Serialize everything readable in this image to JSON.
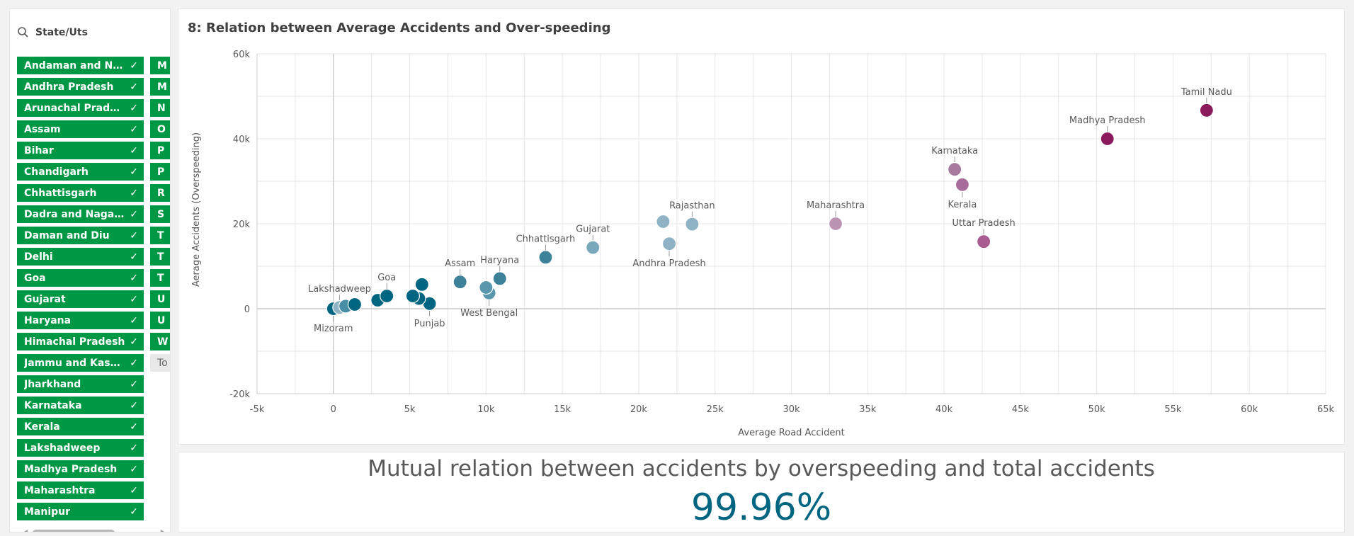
{
  "filter": {
    "search_label": "State/Uts",
    "items_col1": [
      "Andaman and Nicobar Islands",
      "Andhra Pradesh",
      "Arunachal Pradesh",
      "Assam",
      "Bihar",
      "Chandigarh",
      "Chhattisgarh",
      "Dadra and Nagar Haveli",
      "Daman and Diu",
      "Delhi",
      "Goa",
      "Gujarat",
      "Haryana",
      "Himachal Pradesh",
      "Jammu and Kashmir",
      "Jharkhand",
      "Karnataka",
      "Kerala",
      "Lakshadweep",
      "Madhya Pradesh",
      "Maharashtra",
      "Manipur"
    ],
    "items_col2": [
      "M",
      "M",
      "N",
      "O",
      "P",
      "P",
      "R",
      "S",
      "T",
      "T",
      "T",
      "U",
      "U",
      "W",
      "To"
    ],
    "check_glyph": "✓"
  },
  "chart": {
    "title": "8: Relation between Average Accidents and Over-speeding",
    "colors": {
      "low": "#006580",
      "mid": "#8fb8c8",
      "high": "#bb93b3",
      "top": "#8a1a5a",
      "grid": "#e6e6e6",
      "axis": "#cccccc"
    }
  },
  "kpi": {
    "label": "Mutual relation between accidents by overspeeding and total accidents",
    "value": "99.96%"
  },
  "chart_data": {
    "type": "scatter",
    "xlabel": "Average Road Accident",
    "ylabel": "Aerage Accidents (Overspeeding)",
    "xlim": [
      -5000,
      65000
    ],
    "ylim": [
      -20000,
      60000
    ],
    "x_ticks": [
      -5000,
      0,
      5000,
      10000,
      15000,
      20000,
      25000,
      30000,
      35000,
      40000,
      45000,
      50000,
      55000,
      60000,
      65000
    ],
    "x_tick_labels": [
      "-5k",
      "0",
      "5k",
      "10k",
      "15k",
      "20k",
      "25k",
      "30k",
      "35k",
      "40k",
      "45k",
      "50k",
      "55k",
      "60k",
      "65k"
    ],
    "y_ticks": [
      -20000,
      0,
      20000,
      40000,
      60000
    ],
    "y_tick_labels": [
      "-20k",
      "0",
      "20k",
      "40k",
      "60k"
    ],
    "grid": true,
    "points": [
      {
        "x": 57200,
        "y": 46700,
        "label": "Tamil Nadu",
        "lpos": "above",
        "color": "#8a1a5a"
      },
      {
        "x": 50700,
        "y": 40000,
        "label": "Madhya Pradesh",
        "lpos": "above",
        "color": "#8a1a5a"
      },
      {
        "x": 40700,
        "y": 32800,
        "label": "Karnataka",
        "lpos": "above",
        "color": "#a87aa0"
      },
      {
        "x": 41200,
        "y": 29200,
        "label": "Kerala",
        "lpos": "below",
        "color": "#a86c9a"
      },
      {
        "x": 42600,
        "y": 15800,
        "label": "Uttar Pradesh",
        "lpos": "above",
        "color": "#a85c8f"
      },
      {
        "x": 32900,
        "y": 20000,
        "label": "Maharashtra",
        "lpos": "above",
        "color": "#bb93b3"
      },
      {
        "x": 23500,
        "y": 19900,
        "label": "Rajasthan",
        "lpos": "above",
        "color": "#8fb3c4"
      },
      {
        "x": 21600,
        "y": 20500,
        "label": "",
        "lpos": "",
        "color": "#8fb3c4"
      },
      {
        "x": 22000,
        "y": 15300,
        "label": "Andhra Pradesh",
        "lpos": "below",
        "color": "#8fb3c4"
      },
      {
        "x": 17000,
        "y": 14400,
        "label": "Gujarat",
        "lpos": "above",
        "color": "#7aa8bb"
      },
      {
        "x": 13900,
        "y": 12100,
        "label": "Chhattisgarh",
        "lpos": "above",
        "color": "#3d8199"
      },
      {
        "x": 10900,
        "y": 7100,
        "label": "Haryana",
        "lpos": "above",
        "color": "#3d8199"
      },
      {
        "x": 8300,
        "y": 6300,
        "label": "Assam",
        "lpos": "above",
        "color": "#3d8199"
      },
      {
        "x": 10000,
        "y": 5000,
        "label": "",
        "lpos": "",
        "color": "#5a97ad"
      },
      {
        "x": 10200,
        "y": 3700,
        "label": "West Bengal",
        "lpos": "below",
        "color": "#5a97ad"
      },
      {
        "x": 5800,
        "y": 5700,
        "label": "",
        "lpos": "",
        "color": "#006580"
      },
      {
        "x": 5200,
        "y": 3000,
        "label": "",
        "lpos": "",
        "color": "#006580"
      },
      {
        "x": 5600,
        "y": 2400,
        "label": "",
        "lpos": "",
        "color": "#006580"
      },
      {
        "x": 6300,
        "y": 1200,
        "label": "Punjab",
        "lpos": "below",
        "color": "#006580"
      },
      {
        "x": 3500,
        "y": 3000,
        "label": "Goa",
        "lpos": "above",
        "color": "#006580"
      },
      {
        "x": 2900,
        "y": 2000,
        "label": "",
        "lpos": "",
        "color": "#006580"
      },
      {
        "x": 1400,
        "y": 1000,
        "label": "",
        "lpos": "",
        "color": "#006580"
      },
      {
        "x": 800,
        "y": 600,
        "label": "",
        "lpos": "",
        "color": "#4a8ea6"
      },
      {
        "x": 400,
        "y": 300,
        "label": "Lakshadweep",
        "lpos": "above",
        "color": "#8fb3c4"
      },
      {
        "x": 0,
        "y": 0,
        "label": "Mizoram",
        "lpos": "below",
        "color": "#006580"
      }
    ]
  },
  "nav_icons": [
    "chevron-up-icon",
    "chevron-left-icon",
    "home-icon",
    "chevron-right-icon",
    "chevron-down-icon",
    "zoom-in-icon",
    "zoom-out-icon"
  ]
}
